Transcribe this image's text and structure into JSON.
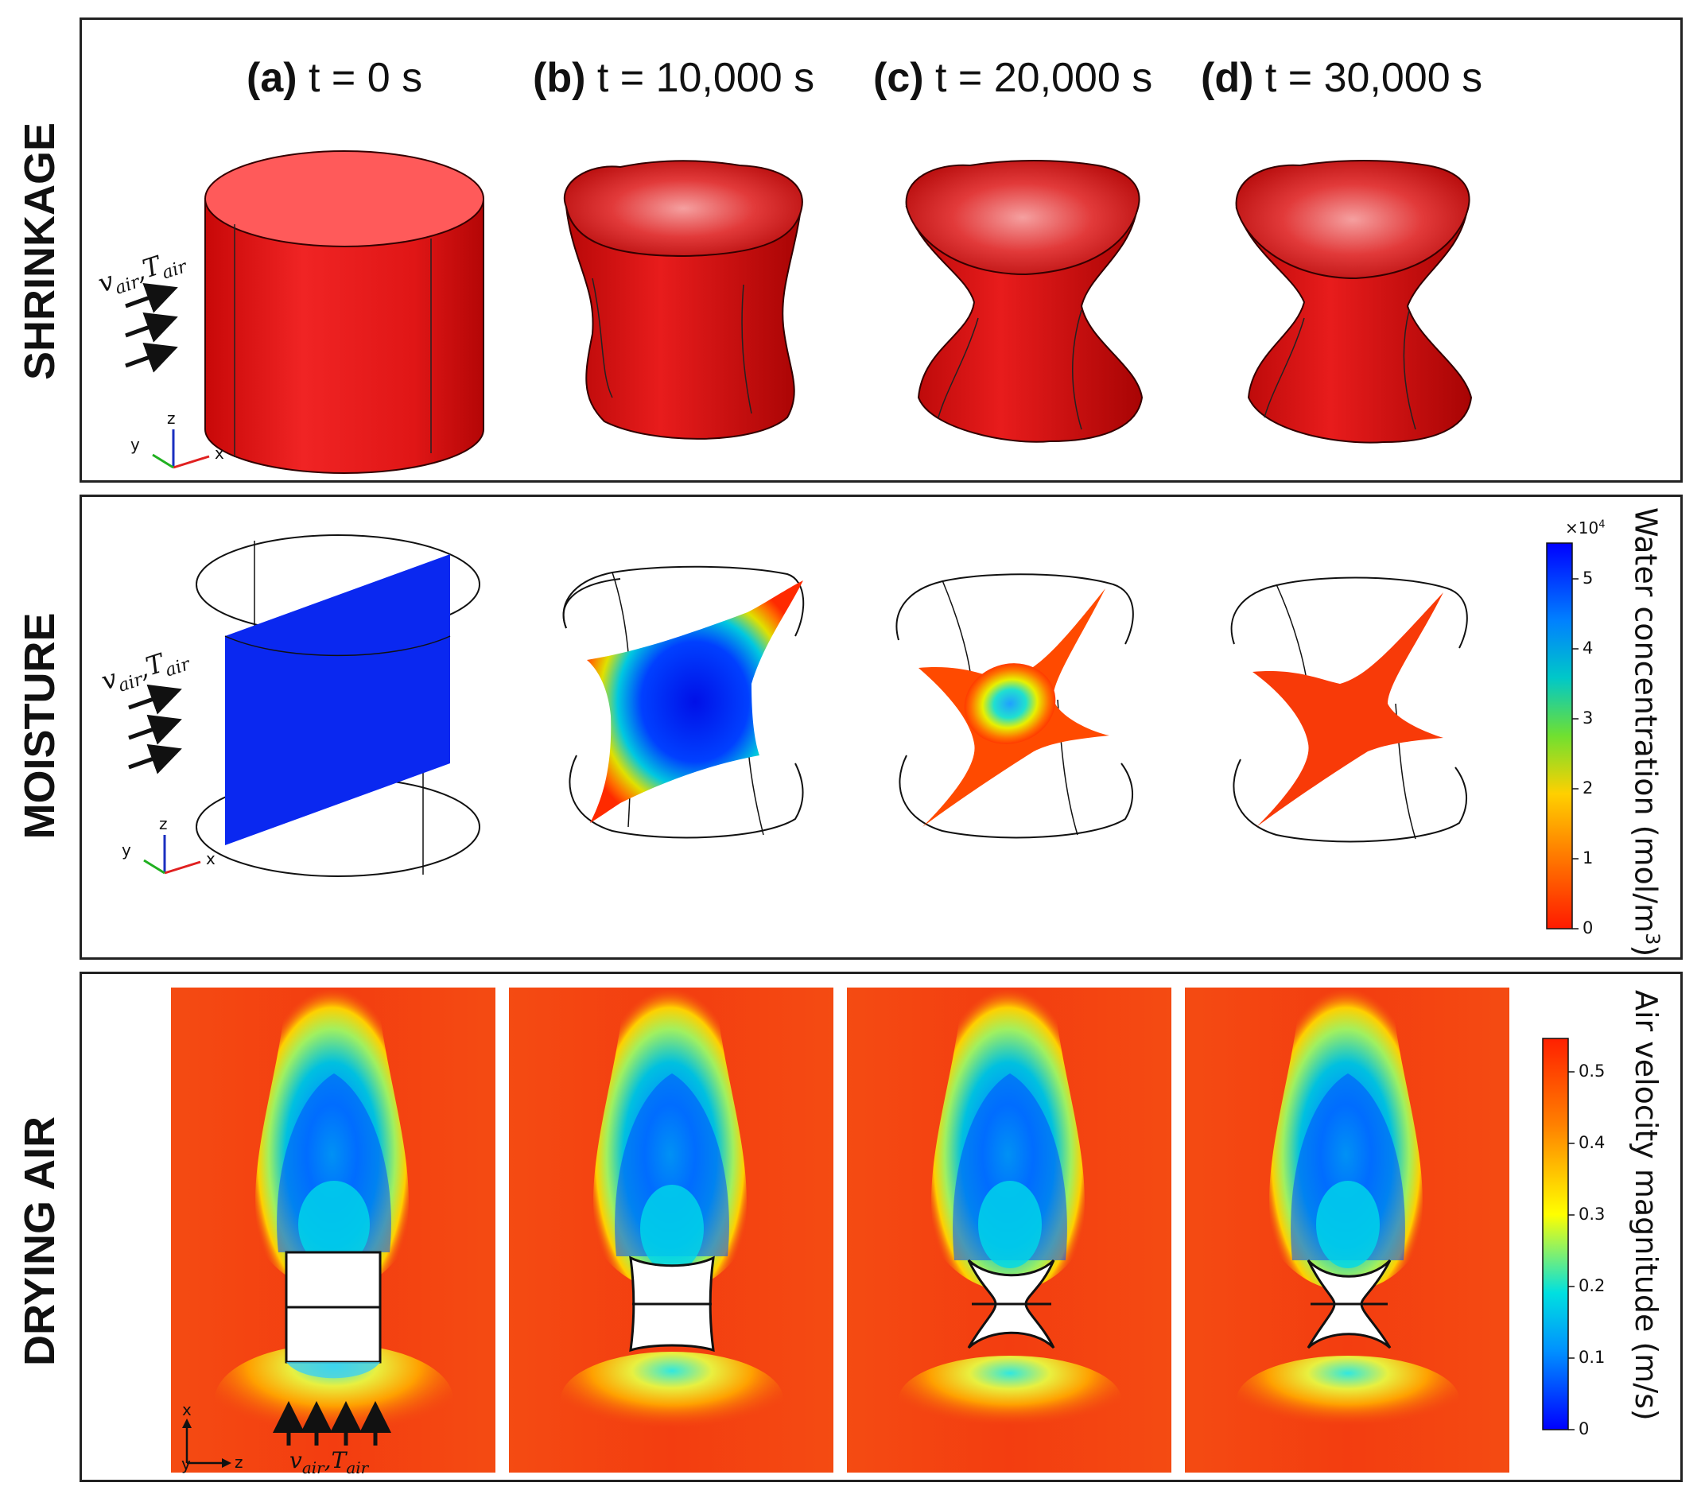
{
  "row_labels": {
    "shrinkage": "SHRINKAGE",
    "moisture": "MOISTURE",
    "drying_air": "DRYING AIR"
  },
  "time_titles": [
    {
      "letter": "(a)",
      "time": "t = 0 s"
    },
    {
      "letter": "(b)",
      "time": "t = 10,000 s"
    },
    {
      "letter": "(c)",
      "time": "t = 20,000 s"
    },
    {
      "letter": "(d)",
      "time": "t = 30,000 s"
    }
  ],
  "inflow_label": {
    "v": "v",
    "v_sub": "air",
    "sep": ",",
    "T": "T",
    "T_sub": "air"
  },
  "axes_3d": {
    "x": "x",
    "y": "y",
    "z": "z"
  },
  "axes_2d": {
    "x": "x",
    "y": "y",
    "z": "z"
  },
  "moisture_colorbar": {
    "title": "Water concentration (mol/m",
    "title_sup": "3",
    "title_end": ")",
    "multiplier": "×10",
    "multiplier_exp": "4",
    "ticks": [
      "0",
      "1",
      "2",
      "3",
      "4",
      "5"
    ],
    "colors": [
      "#ff1a00",
      "#ffd000",
      "#00c8c8",
      "#0000ff"
    ]
  },
  "air_colorbar": {
    "title": "Air velocity magnitude (m/s)",
    "ticks": [
      "0",
      "0.1",
      "0.2",
      "0.3",
      "0.4",
      "0.5"
    ],
    "colors": [
      "#0000ff",
      "#00e0e0",
      "#ffff00",
      "#ff2000"
    ]
  },
  "colors": {
    "sample_red": "#dd0f0f",
    "moisture_blue": "#0a28f0",
    "field_orange": "#f44b12"
  }
}
